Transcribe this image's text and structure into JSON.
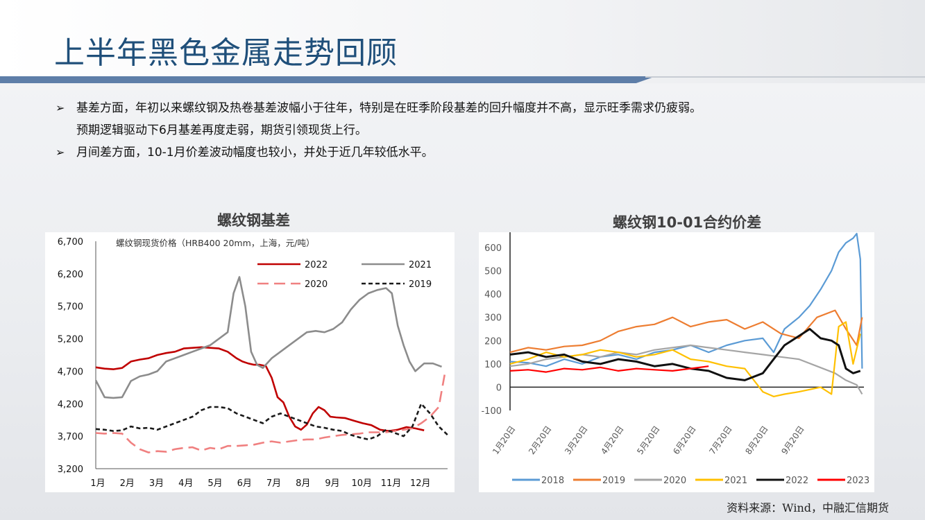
{
  "page": {
    "title": "上半年黑色金属走势回顾",
    "bullets": [
      {
        "lines": [
          "基差方面，年初以来螺纹钢及热卷基差波幅小于往年，特别是在旺季阶段基差的回升幅度并不高，显示旺季需求仍疲弱。",
          "预期逻辑驱动下6月基差再度走弱，期货引领现货上行。"
        ]
      },
      {
        "lines": [
          "月间差方面，10-1月价差波动幅度也较小，并处于近几年较低水平。"
        ]
      }
    ],
    "source": "资料来源：Wind，中融汇信期货"
  },
  "chart_data": [
    {
      "type": "line",
      "title": "螺纹钢基差",
      "subtitle": "螺纹钢现货价格（HRB400 20mm，上海，元/吨）",
      "categories": [
        "1月",
        "2月",
        "3月",
        "4月",
        "5月",
        "6月",
        "7月",
        "8月",
        "9月",
        "10月",
        "11月",
        "12月"
      ],
      "ylim": [
        3200,
        6700
      ],
      "yticks": [
        3200,
        3700,
        4200,
        4700,
        5200,
        5700,
        6200,
        6700
      ],
      "ytick_labels": [
        "3,200",
        "3,700",
        "4,200",
        "4,700",
        "5,200",
        "5,700",
        "6,200",
        "6,700"
      ],
      "legend": "top-right",
      "series": [
        {
          "name": "2022",
          "color": "#c00000",
          "dash": "solid",
          "x": [
            0,
            0.3,
            0.6,
            0.9,
            1.2,
            1.5,
            1.8,
            2.1,
            2.4,
            2.7,
            3.0,
            3.3,
            3.6,
            3.9,
            4.2,
            4.5,
            4.8,
            5.0,
            5.2,
            5.4,
            5.6,
            5.8,
            6.0,
            6.2,
            6.4,
            6.6,
            6.8,
            7.0,
            7.2,
            7.4,
            7.6,
            7.8,
            8.0,
            8.2,
            8.5,
            8.8,
            9.1,
            9.4,
            9.7,
            10.0,
            10.3,
            10.6,
            10.9,
            11.2
          ],
          "values": [
            4760,
            4740,
            4730,
            4750,
            4850,
            4880,
            4900,
            4950,
            4980,
            5000,
            5050,
            5060,
            5070,
            5060,
            5050,
            5000,
            4900,
            4850,
            4820,
            4800,
            4800,
            4780,
            4600,
            4300,
            4220,
            4000,
            3850,
            3800,
            3880,
            4050,
            4150,
            4100,
            4000,
            3990,
            3980,
            3940,
            3900,
            3870,
            3800,
            3780,
            3800,
            3840,
            3820,
            3790
          ]
        },
        {
          "name": "2021",
          "color": "#8c8c8c",
          "dash": "solid",
          "x": [
            0,
            0.3,
            0.6,
            0.9,
            1.2,
            1.5,
            1.8,
            2.1,
            2.4,
            2.7,
            3.0,
            3.3,
            3.6,
            3.9,
            4.2,
            4.5,
            4.7,
            4.9,
            5.1,
            5.3,
            5.5,
            5.7,
            6.0,
            6.3,
            6.6,
            6.9,
            7.2,
            7.5,
            7.8,
            8.1,
            8.4,
            8.7,
            9.0,
            9.3,
            9.6,
            9.9,
            10.1,
            10.3,
            10.5,
            10.7,
            10.9,
            11.2,
            11.5,
            11.8
          ],
          "values": [
            4560,
            4300,
            4290,
            4300,
            4550,
            4620,
            4650,
            4700,
            4850,
            4900,
            4950,
            5000,
            5050,
            5100,
            5200,
            5300,
            5900,
            6150,
            5700,
            5000,
            4800,
            4750,
            4900,
            5000,
            5100,
            5200,
            5300,
            5320,
            5300,
            5350,
            5450,
            5650,
            5800,
            5900,
            5950,
            5980,
            5900,
            5400,
            5100,
            4850,
            4700,
            4820,
            4820,
            4770
          ]
        },
        {
          "name": "2020",
          "color": "#f08080",
          "dash": "longdash",
          "x": [
            0,
            0.3,
            0.6,
            0.9,
            1.2,
            1.5,
            1.8,
            2.1,
            2.4,
            2.7,
            3.0,
            3.3,
            3.6,
            3.9,
            4.2,
            4.5,
            4.8,
            5.1,
            5.4,
            5.7,
            6.0,
            6.3,
            6.6,
            6.9,
            7.2,
            7.5,
            7.8,
            8.1,
            8.4,
            8.7,
            9.0,
            9.3,
            9.6,
            9.9,
            10.2,
            10.5,
            10.8,
            11.1,
            11.4,
            11.7,
            11.9
          ],
          "values": [
            3750,
            3740,
            3750,
            3740,
            3600,
            3500,
            3450,
            3470,
            3460,
            3500,
            3520,
            3530,
            3480,
            3520,
            3500,
            3550,
            3550,
            3560,
            3570,
            3600,
            3620,
            3600,
            3620,
            3640,
            3650,
            3650,
            3680,
            3700,
            3720,
            3730,
            3740,
            3760,
            3760,
            3760,
            3780,
            3800,
            3820,
            3900,
            4000,
            4150,
            4650
          ]
        },
        {
          "name": "2019",
          "color": "#1a1a1a",
          "dash": "dash",
          "x": [
            0,
            0.3,
            0.6,
            0.9,
            1.2,
            1.5,
            1.8,
            2.1,
            2.4,
            2.7,
            3.0,
            3.3,
            3.6,
            3.9,
            4.2,
            4.5,
            4.8,
            5.1,
            5.4,
            5.7,
            6.0,
            6.3,
            6.6,
            6.9,
            7.2,
            7.5,
            7.8,
            8.1,
            8.4,
            8.7,
            9.0,
            9.3,
            9.6,
            9.9,
            10.2,
            10.5,
            10.8,
            11.1,
            11.4,
            11.7,
            12.0
          ],
          "values": [
            3810,
            3800,
            3780,
            3790,
            3850,
            3820,
            3830,
            3800,
            3850,
            3900,
            3950,
            4000,
            4100,
            4150,
            4150,
            4130,
            4050,
            4000,
            3950,
            3900,
            4000,
            4050,
            4000,
            3950,
            3900,
            3850,
            3830,
            3800,
            3780,
            3720,
            3680,
            3650,
            3700,
            3800,
            3750,
            3700,
            3850,
            4200,
            4050,
            3850,
            3720
          ]
        }
      ]
    },
    {
      "type": "line",
      "title": "螺纹钢10-01合约价差",
      "categories": [
        "1月20日",
        "2月20日",
        "3月20日",
        "4月20日",
        "5月20日",
        "6月20日",
        "7月20日",
        "8月20日",
        "9月20日"
      ],
      "ylim": [
        -100,
        600
      ],
      "yticks": [
        -100,
        0,
        100,
        200,
        300,
        400,
        500,
        600
      ],
      "legend": "bottom",
      "series": [
        {
          "name": "2018",
          "color": "#5b9bd5",
          "x": [
            0,
            0.5,
            1,
            1.5,
            2,
            2.5,
            3,
            3.5,
            4,
            4.5,
            5,
            5.5,
            6,
            6.5,
            7,
            7.3,
            7.6,
            8,
            8.3,
            8.6,
            8.9,
            9.1,
            9.3,
            9.5,
            9.6,
            9.7,
            9.75
          ],
          "values": [
            110,
            105,
            90,
            120,
            100,
            130,
            140,
            120,
            150,
            160,
            180,
            150,
            180,
            200,
            210,
            150,
            250,
            300,
            350,
            420,
            500,
            580,
            620,
            640,
            660,
            550,
            80
          ]
        },
        {
          "name": "2019",
          "color": "#ed7d31",
          "x": [
            0,
            0.5,
            1,
            1.5,
            2,
            2.5,
            3,
            3.5,
            4,
            4.5,
            5,
            5.5,
            6,
            6.5,
            7,
            7.5,
            8,
            8.5,
            9,
            9.3,
            9.6,
            9.75
          ],
          "values": [
            150,
            170,
            160,
            175,
            180,
            200,
            240,
            260,
            270,
            300,
            260,
            280,
            290,
            250,
            280,
            230,
            210,
            300,
            330,
            250,
            180,
            300
          ]
        },
        {
          "name": "2020",
          "color": "#a5a5a5",
          "x": [
            0,
            0.5,
            1,
            1.5,
            2,
            2.5,
            3,
            3.5,
            4,
            4.5,
            5,
            5.5,
            6,
            6.5,
            7,
            7.5,
            8,
            8.5,
            9,
            9.3,
            9.6,
            9.75
          ],
          "values": [
            90,
            100,
            120,
            130,
            140,
            130,
            150,
            140,
            160,
            170,
            180,
            170,
            160,
            150,
            140,
            130,
            120,
            90,
            60,
            30,
            10,
            -30
          ]
        },
        {
          "name": "2021",
          "color": "#ffc000",
          "x": [
            0,
            0.5,
            1,
            1.5,
            2,
            2.5,
            3,
            3.5,
            4,
            4.5,
            5,
            5.5,
            6,
            6.5,
            7,
            7.3,
            7.6,
            8,
            8.3,
            8.6,
            8.9,
            9.1,
            9.3,
            9.5,
            9.7
          ],
          "values": [
            100,
            120,
            150,
            130,
            140,
            160,
            150,
            130,
            140,
            160,
            120,
            110,
            90,
            80,
            -20,
            -40,
            -30,
            -20,
            -10,
            0,
            -30,
            260,
            280,
            100,
            230
          ]
        },
        {
          "name": "2022",
          "color": "#111111",
          "x": [
            0,
            0.5,
            1,
            1.5,
            2,
            2.5,
            3,
            3.5,
            4,
            4.5,
            5,
            5.5,
            6,
            6.5,
            7,
            7.3,
            7.6,
            8,
            8.3,
            8.6,
            8.9,
            9.1,
            9.3,
            9.5,
            9.7
          ],
          "values": [
            140,
            150,
            130,
            140,
            110,
            100,
            120,
            110,
            90,
            100,
            80,
            70,
            40,
            30,
            60,
            120,
            180,
            220,
            250,
            210,
            200,
            180,
            80,
            60,
            70
          ]
        },
        {
          "name": "2023",
          "color": "#ff0000",
          "x": [
            0,
            0.5,
            1,
            1.5,
            2,
            2.5,
            3,
            3.5,
            4,
            4.5,
            5,
            5.5
          ],
          "values": [
            70,
            75,
            65,
            80,
            75,
            85,
            70,
            80,
            75,
            70,
            80,
            90
          ]
        }
      ]
    }
  ]
}
